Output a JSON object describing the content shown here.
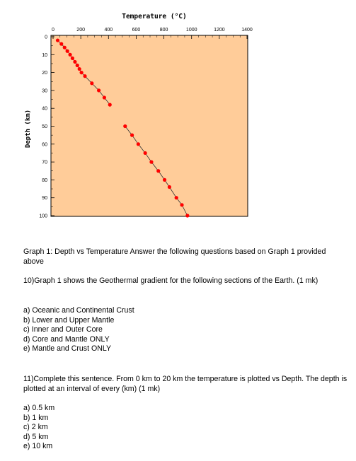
{
  "chart_data": {
    "type": "scatter",
    "title": "Temperature (°C)",
    "xlabel": "",
    "ylabel": "Depth (km)",
    "xlim": [
      0,
      1400
    ],
    "ylim": [
      0,
      100
    ],
    "y_inverted": true,
    "x_axis_position": "top",
    "xticks": [
      "0",
      "200",
      "400",
      "600",
      "800",
      "1000",
      "1200",
      "1400"
    ],
    "yticks": [
      "0",
      "10",
      "20",
      "30",
      "40",
      "50",
      "60",
      "70",
      "80",
      "90",
      "100"
    ],
    "grid": false,
    "point_color": "#ff0000",
    "plot_background": "#ffcc99",
    "series": [
      {
        "points": [
          [
            33,
            2
          ],
          [
            60,
            4
          ],
          [
            83,
            6
          ],
          [
            103,
            8
          ],
          [
            123,
            10
          ],
          [
            140,
            12
          ],
          [
            158,
            14
          ],
          [
            175,
            16
          ],
          [
            190,
            18
          ],
          [
            205,
            20
          ],
          [
            230,
            22
          ],
          [
            280,
            26
          ],
          [
            330,
            30
          ],
          [
            370,
            34
          ],
          [
            410,
            38
          ]
        ]
      },
      {
        "points": [
          [
            520,
            50
          ],
          [
            570,
            55
          ],
          [
            615,
            60
          ],
          [
            665,
            65
          ],
          [
            710,
            70
          ],
          [
            760,
            75
          ],
          [
            805,
            80
          ],
          [
            840,
            84
          ],
          [
            890,
            90
          ],
          [
            930,
            94
          ],
          [
            970,
            100
          ]
        ]
      }
    ]
  },
  "caption": "Graph 1: Depth vs Temperature Answer the following questions based on Graph 1 provided above",
  "question10": {
    "prompt": "10)Graph 1 shows the Geothermal gradient for the following sections of the Earth. (1 mk)",
    "options": [
      "a) Oceanic and Continental Crust",
      "b) Lower and Upper Mantle",
      "c) Inner and Outer Core",
      "d) Core and Mantle ONLY",
      "e) Mantle and Crust ONLY"
    ]
  },
  "question11": {
    "prompt": "11)Complete this sentence. From 0 km to 20 km the temperature is plotted vs Depth. The depth is plotted at an interval of every (km) (1 mk)",
    "options": [
      "a) 0.5 km",
      "b) 1 km",
      "c) 2 km",
      "d) 5 km",
      "e) 10 km"
    ]
  }
}
